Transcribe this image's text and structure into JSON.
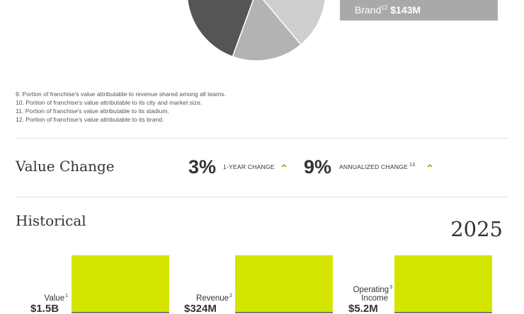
{
  "breakdown": {
    "pie_slices": [
      {
        "name": "green",
        "color": "#8fb021",
        "start": 220,
        "end": 282
      },
      {
        "name": "dark",
        "color": "#555555",
        "start": 110,
        "end": 220
      },
      {
        "name": "light",
        "color": "#b3b3b3",
        "start": 50,
        "end": 110
      },
      {
        "name": "top",
        "color": "#cfcfcf",
        "start": 282,
        "end": 410
      }
    ],
    "brand": {
      "label": "Brand",
      "footnote": "12",
      "value": "$143M",
      "color": "#a9a9a9"
    }
  },
  "footnotes": [
    "9. Portion of franchise's value attributable to revenue shared among all teams.",
    "10. Portion of franchise's value attributable to its city and market size.",
    "11. Portion of franchise's value attributable to its stadium.",
    "12. Portion of franchise's value attributable to its brand."
  ],
  "value_change": {
    "title": "Value Change",
    "one_year": {
      "value": "3%",
      "label": "1-YEAR CHANGE"
    },
    "annualized": {
      "value": "9%",
      "label": "ANNUALIZED CHANGE",
      "footnote": "13"
    },
    "arrow_color": "#8fb021"
  },
  "historical": {
    "title": "Historical",
    "year": "2025",
    "bar_color": "#d4e600",
    "metrics": [
      {
        "label": "Value",
        "footnote": "1",
        "value": "$1.5B"
      },
      {
        "label": "Revenue",
        "footnote": "2",
        "value": "$324M"
      },
      {
        "label_line1": "Operating",
        "label_line2": "Income",
        "footnote": "3",
        "value": "$5.2M"
      }
    ]
  }
}
